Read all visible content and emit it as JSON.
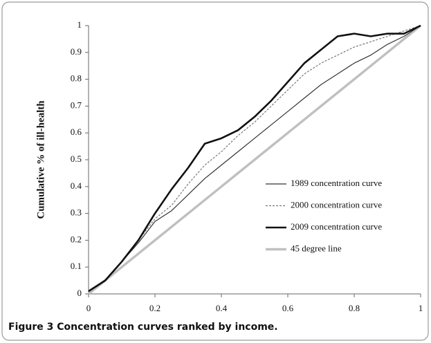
{
  "chart_data": {
    "type": "line",
    "caption": "Figure 3 Concentration curves ranked by income.",
    "y_label": "Cumulative % of ill-health",
    "x": [
      0,
      0.05,
      0.1,
      0.15,
      0.2,
      0.25,
      0.3,
      0.35,
      0.4,
      0.45,
      0.5,
      0.55,
      0.6,
      0.65,
      0.7,
      0.75,
      0.8,
      0.85,
      0.9,
      0.95,
      1
    ],
    "series": [
      {
        "name": "1989 concentration curve",
        "color": "#333333",
        "values": [
          0.01,
          0.05,
          0.12,
          0.19,
          0.27,
          0.31,
          0.37,
          0.43,
          0.48,
          0.53,
          0.58,
          0.63,
          0.68,
          0.73,
          0.78,
          0.82,
          0.86,
          0.89,
          0.93,
          0.96,
          1
        ]
      },
      {
        "name": "2000 concentration curve",
        "color": "#777777",
        "dashed": true,
        "values": [
          0.01,
          0.05,
          0.12,
          0.2,
          0.28,
          0.33,
          0.41,
          0.48,
          0.53,
          0.59,
          0.64,
          0.7,
          0.76,
          0.82,
          0.86,
          0.89,
          0.92,
          0.94,
          0.96,
          0.98,
          1
        ]
      },
      {
        "name": "2009 concentration curve",
        "color": "#111111",
        "values": [
          0.01,
          0.05,
          0.12,
          0.2,
          0.3,
          0.39,
          0.47,
          0.56,
          0.58,
          0.61,
          0.66,
          0.72,
          0.79,
          0.86,
          0.91,
          0.96,
          0.97,
          0.96,
          0.97,
          0.97,
          1
        ]
      },
      {
        "name": "45 degree line",
        "color": "#c0c0c0",
        "values": [
          0,
          0.05,
          0.1,
          0.15,
          0.2,
          0.25,
          0.3,
          0.35,
          0.4,
          0.45,
          0.5,
          0.55,
          0.6,
          0.65,
          0.7,
          0.75,
          0.8,
          0.85,
          0.9,
          0.95,
          1
        ]
      }
    ],
    "xlim": [
      0,
      1
    ],
    "xticks": [
      0,
      0.2,
      0.4,
      0.6,
      0.8,
      1
    ],
    "ylim": [
      0,
      1
    ],
    "yticks": [
      0,
      0.1,
      0.2,
      0.3,
      0.4,
      0.5,
      0.6,
      0.7,
      0.8,
      0.9,
      1
    ]
  }
}
